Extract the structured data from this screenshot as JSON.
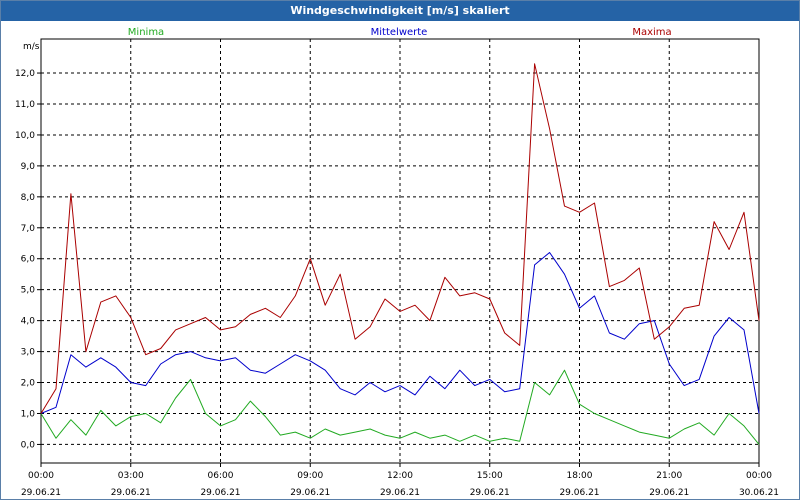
{
  "window": {
    "title": "Windgeschwindigkeit [m/s] skaliert"
  },
  "colors": {
    "minima": "#22aa22",
    "mittel": "#0000cc",
    "maxima": "#aa0000",
    "grid": "#000000"
  },
  "chart_data": {
    "type": "line",
    "title": "Windgeschwindigkeit [m/s] skaliert",
    "ylabel": "m/s",
    "ylim": [
      -0.6,
      13.1
    ],
    "xlim": [
      0,
      24
    ],
    "grid": true,
    "legend_placement": "top",
    "y_ticks": [
      "0,0",
      "1,0",
      "2,0",
      "3,0",
      "4,0",
      "5,0",
      "6,0",
      "7,0",
      "8,0",
      "9,0",
      "10,0",
      "11,0",
      "12,0"
    ],
    "x_ticks": [
      {
        "time": "00:00",
        "date": "29.06.21"
      },
      {
        "time": "03:00",
        "date": "29.06.21"
      },
      {
        "time": "06:00",
        "date": "29.06.21"
      },
      {
        "time": "09:00",
        "date": "29.06.21"
      },
      {
        "time": "12:00",
        "date": "29.06.21"
      },
      {
        "time": "15:00",
        "date": "29.06.21"
      },
      {
        "time": "18:00",
        "date": "29.06.21"
      },
      {
        "time": "21:00",
        "date": "29.06.21"
      },
      {
        "time": "00:00",
        "date": "30.06.21"
      }
    ],
    "x_hours": [
      0,
      0.5,
      1,
      1.5,
      2,
      2.5,
      3,
      3.5,
      4,
      4.5,
      5,
      5.5,
      6,
      6.5,
      7,
      7.5,
      8,
      8.5,
      9,
      9.5,
      10,
      10.5,
      11,
      11.5,
      12,
      12.5,
      13,
      13.5,
      14,
      14.5,
      15,
      15.5,
      16,
      16.5,
      17,
      17.5,
      18,
      18.5,
      19,
      19.5,
      20,
      20.5,
      21,
      21.5,
      22,
      22.5,
      23,
      23.5,
      24
    ],
    "series": [
      {
        "name": "Minima",
        "values": [
          1.0,
          0.2,
          0.8,
          0.3,
          1.1,
          0.6,
          0.9,
          1.0,
          0.7,
          1.5,
          2.1,
          1.0,
          0.6,
          0.8,
          1.4,
          0.9,
          0.3,
          0.4,
          0.2,
          0.5,
          0.3,
          0.4,
          0.5,
          0.3,
          0.2,
          0.4,
          0.2,
          0.3,
          0.1,
          0.3,
          0.1,
          0.2,
          0.1,
          2.0,
          1.6,
          2.4,
          1.3,
          1.0,
          0.8,
          0.6,
          0.4,
          0.3,
          0.2,
          0.5,
          0.7,
          0.3,
          1.0,
          0.6,
          0.0
        ]
      },
      {
        "name": "Mittelwerte",
        "values": [
          1.0,
          1.2,
          2.9,
          2.5,
          2.8,
          2.5,
          2.0,
          1.9,
          2.6,
          2.9,
          3.0,
          2.8,
          2.7,
          2.8,
          2.4,
          2.3,
          2.6,
          2.9,
          2.7,
          2.4,
          1.8,
          1.6,
          2.0,
          1.7,
          1.9,
          1.6,
          2.2,
          1.8,
          2.4,
          1.9,
          2.1,
          1.7,
          1.8,
          5.8,
          6.2,
          5.5,
          4.4,
          4.8,
          3.6,
          3.4,
          3.9,
          4.0,
          2.6,
          1.9,
          2.1,
          3.5,
          4.1,
          3.7,
          1.0
        ]
      },
      {
        "name": "Maxima",
        "values": [
          1.0,
          1.8,
          8.1,
          3.0,
          4.6,
          4.8,
          4.1,
          2.9,
          3.1,
          3.7,
          3.9,
          4.1,
          3.7,
          3.8,
          4.2,
          4.4,
          4.1,
          4.8,
          6.0,
          4.5,
          5.5,
          3.4,
          3.8,
          4.7,
          4.3,
          4.5,
          4.0,
          5.4,
          4.8,
          4.9,
          4.7,
          3.6,
          3.2,
          12.3,
          10.2,
          7.7,
          7.5,
          7.8,
          5.1,
          5.3,
          5.7,
          3.4,
          3.8,
          4.4,
          4.5,
          7.2,
          6.3,
          7.5,
          4.0
        ]
      }
    ]
  }
}
